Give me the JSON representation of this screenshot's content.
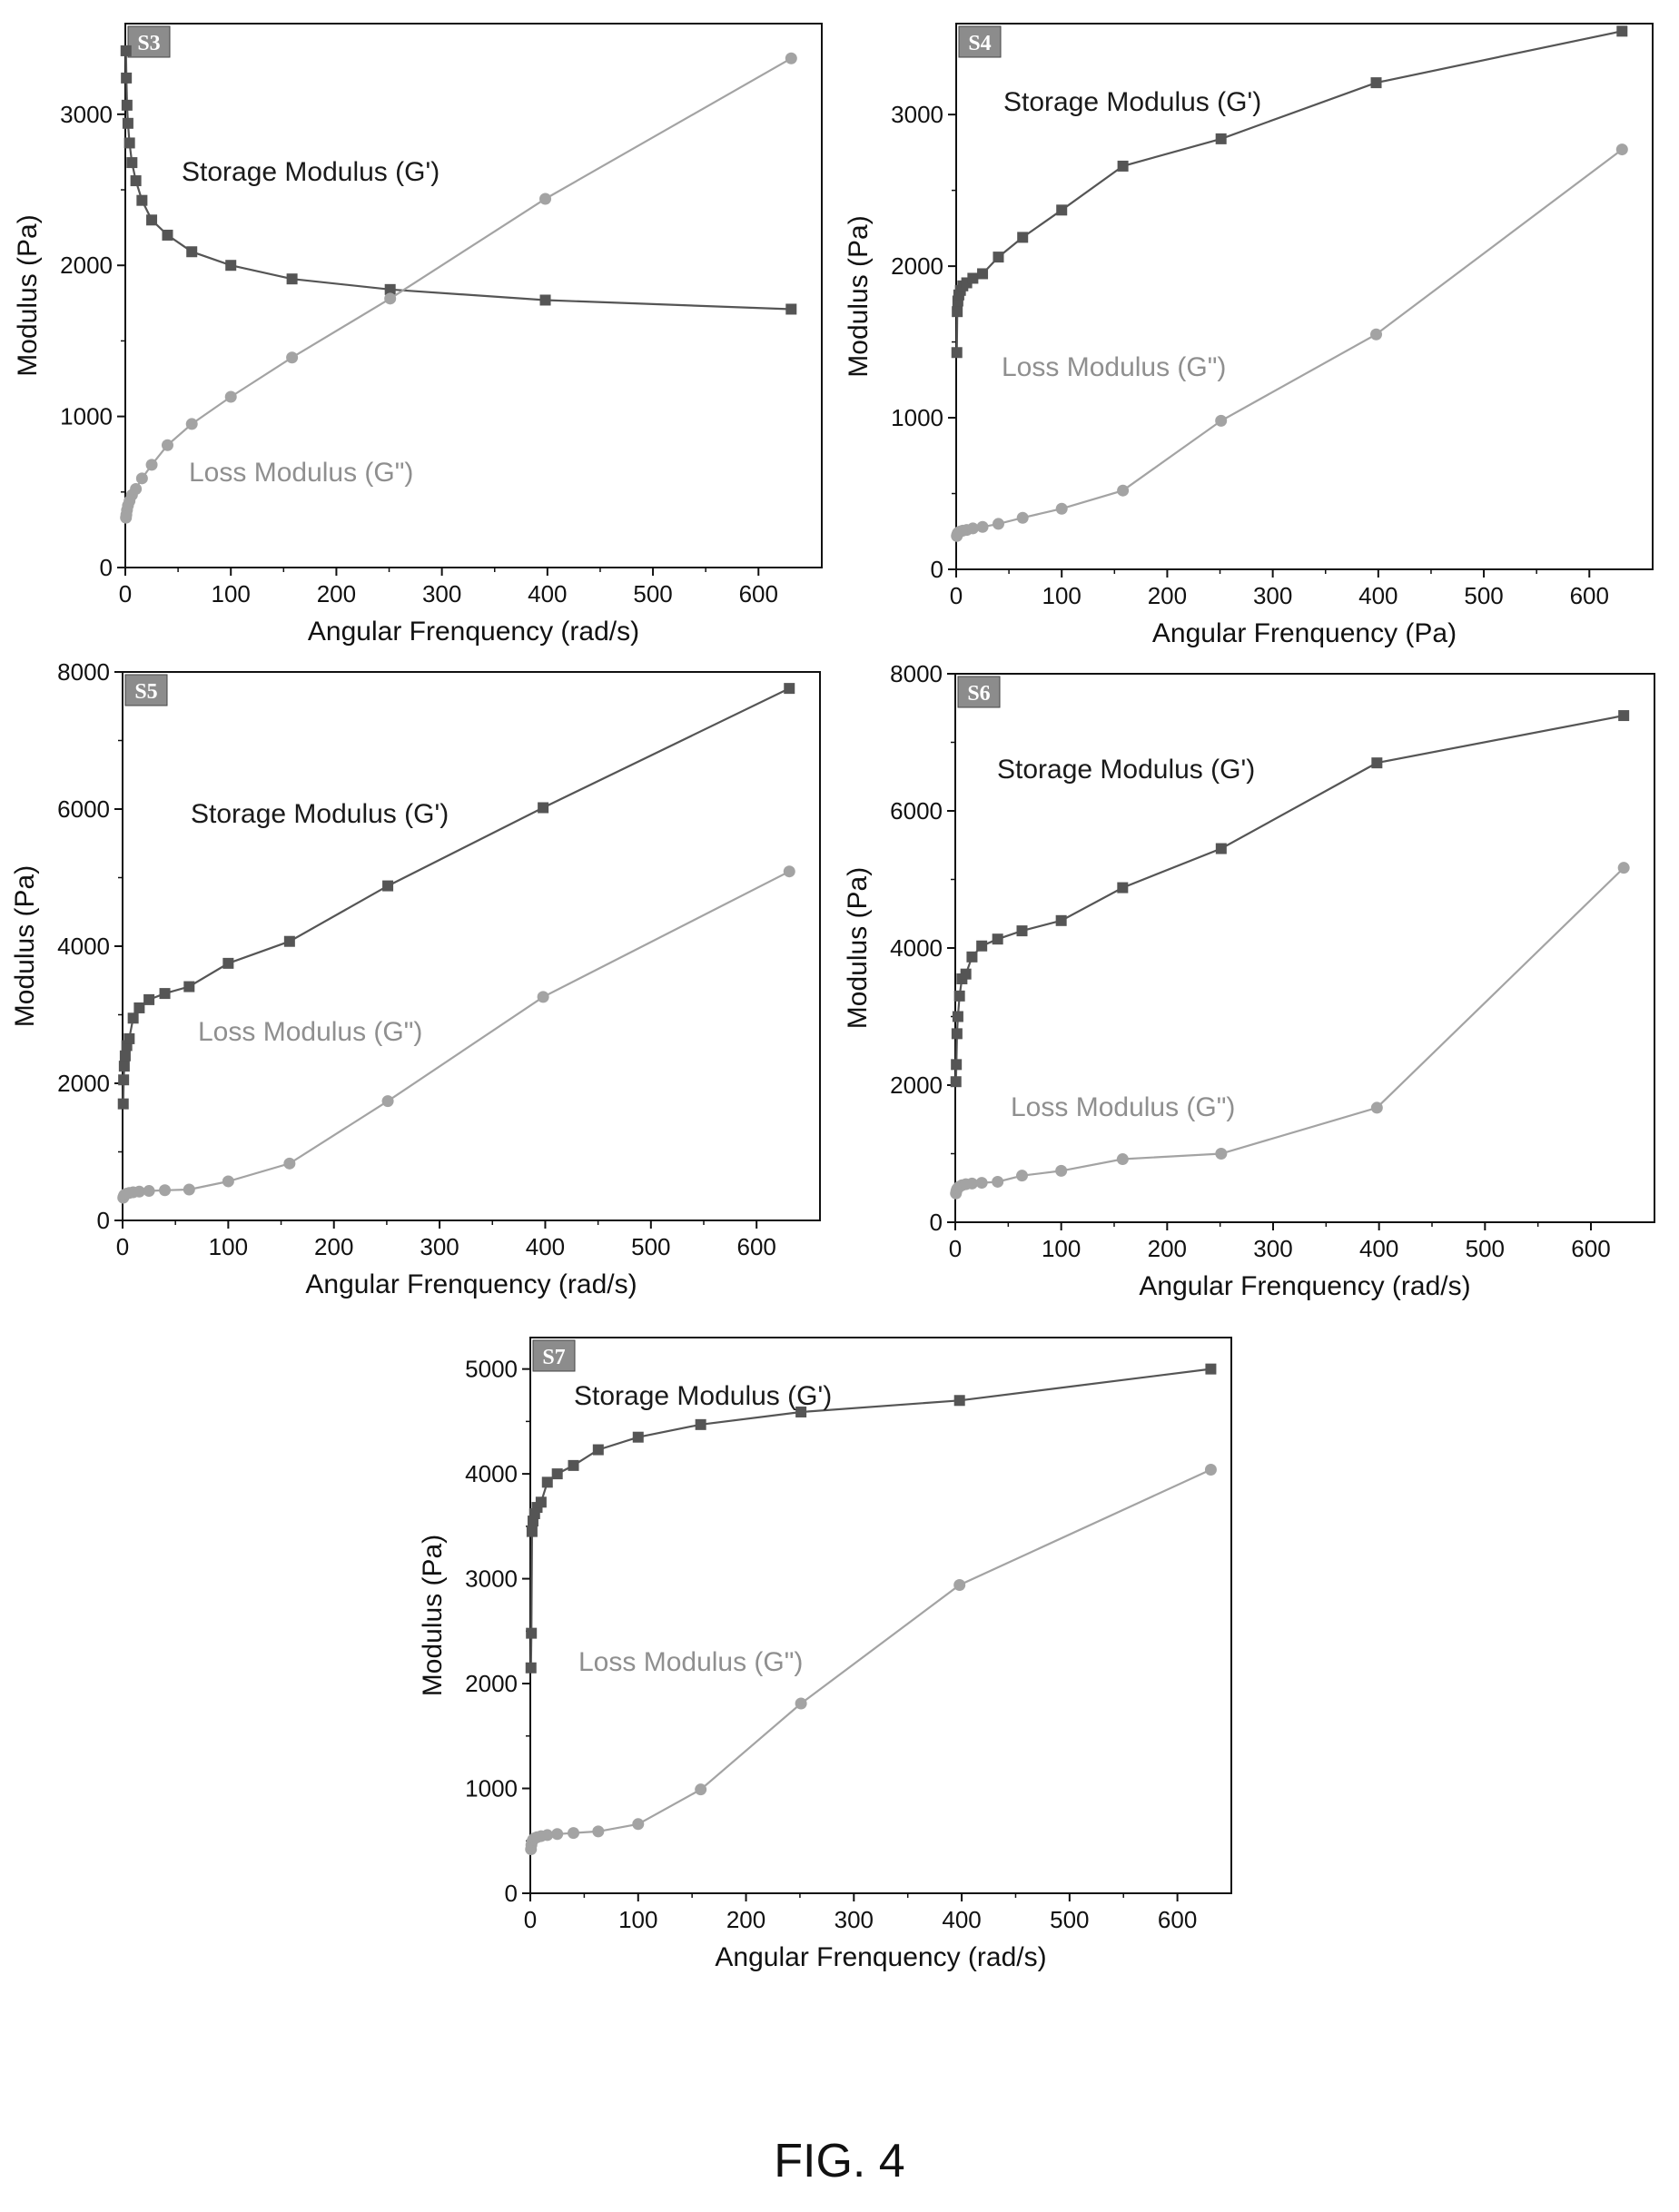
{
  "figure_caption": "FIG. 4",
  "colors": {
    "storage": "#555555",
    "loss": "#a3a3a3",
    "axis": "#111111",
    "tag_fill": "#8c8c8c"
  },
  "chart_data": [
    {
      "type": "line",
      "panel_label": "S3",
      "xlabel": "Angular Frenquency (rad/s)",
      "ylabel": "Modulus (Pa)",
      "xlim": [
        0,
        660
      ],
      "ylim": [
        0,
        3600
      ],
      "xticks": [
        0,
        100,
        200,
        300,
        400,
        500,
        600
      ],
      "yticks": [
        0,
        1000,
        2000,
        3000
      ],
      "grid": false,
      "legend": "none (series labels placed inline)",
      "series": [
        {
          "name": "Storage Modulus (G')",
          "marker": "square",
          "points": [
            [
              0.63,
              3420
            ],
            [
              1,
              3240
            ],
            [
              1.6,
              3060
            ],
            [
              2.5,
              2940
            ],
            [
              4,
              2810
            ],
            [
              6.3,
              2680
            ],
            [
              10,
              2560
            ],
            [
              15.8,
              2430
            ],
            [
              25,
              2300
            ],
            [
              40,
              2200
            ],
            [
              63,
              2090
            ],
            [
              100,
              2000
            ],
            [
              158,
              1910
            ],
            [
              251,
              1840
            ],
            [
              398,
              1770
            ],
            [
              631,
              1710
            ]
          ]
        },
        {
          "name": "Loss Modulus (G\")",
          "marker": "circle",
          "points": [
            [
              0.63,
              330
            ],
            [
              1,
              350
            ],
            [
              1.6,
              380
            ],
            [
              2.5,
              410
            ],
            [
              4,
              440
            ],
            [
              6.3,
              480
            ],
            [
              10,
              520
            ],
            [
              15.8,
              590
            ],
            [
              25,
              680
            ],
            [
              40,
              810
            ],
            [
              63,
              950
            ],
            [
              100,
              1130
            ],
            [
              158,
              1390
            ],
            [
              251,
              1780
            ],
            [
              398,
              2440
            ],
            [
              631,
              3370
            ]
          ]
        }
      ]
    },
    {
      "type": "line",
      "panel_label": "S4",
      "xlabel": "Angular Frenquency (Pa)",
      "ylabel": "Modulus (Pa)",
      "xlim": [
        0,
        660
      ],
      "ylim": [
        0,
        3600
      ],
      "xticks": [
        0,
        100,
        200,
        300,
        400,
        500,
        600
      ],
      "yticks": [
        0,
        1000,
        2000,
        3000
      ],
      "grid": false,
      "legend": "none (series labels placed inline)",
      "series": [
        {
          "name": "Storage Modulus (G')",
          "marker": "square",
          "points": [
            [
              0.63,
              1430
            ],
            [
              1,
              1700
            ],
            [
              1.6,
              1770
            ],
            [
              2.5,
              1810
            ],
            [
              4,
              1840
            ],
            [
              6.3,
              1870
            ],
            [
              10,
              1890
            ],
            [
              15.8,
              1920
            ],
            [
              25,
              1950
            ],
            [
              40,
              2060
            ],
            [
              63,
              2190
            ],
            [
              100,
              2370
            ],
            [
              158,
              2660
            ],
            [
              251,
              2840
            ],
            [
              398,
              3210
            ],
            [
              631,
              3550
            ]
          ]
        },
        {
          "name": "Loss Modulus (G\")",
          "marker": "circle",
          "points": [
            [
              0.63,
              220
            ],
            [
              1,
              230
            ],
            [
              1.6,
              240
            ],
            [
              2.5,
              245
            ],
            [
              4,
              250
            ],
            [
              6.3,
              255
            ],
            [
              10,
              260
            ],
            [
              15.8,
              270
            ],
            [
              25,
              280
            ],
            [
              40,
              300
            ],
            [
              63,
              340
            ],
            [
              100,
              400
            ],
            [
              158,
              520
            ],
            [
              251,
              980
            ],
            [
              398,
              1550
            ],
            [
              631,
              2770
            ]
          ]
        }
      ]
    },
    {
      "type": "line",
      "panel_label": "S5",
      "xlabel": "Angular Frenquency (rad/s)",
      "ylabel": "Modulus (Pa)",
      "xlim": [
        0,
        660
      ],
      "ylim": [
        0,
        8000
      ],
      "xticks": [
        0,
        100,
        200,
        300,
        400,
        500,
        600
      ],
      "yticks": [
        0,
        2000,
        4000,
        6000,
        8000
      ],
      "grid": false,
      "legend": "none (series labels placed inline)",
      "series": [
        {
          "name": "Storage Modulus (G')",
          "marker": "square",
          "points": [
            [
              0.63,
              1700
            ],
            [
              1,
              2050
            ],
            [
              1.6,
              2250
            ],
            [
              2.5,
              2400
            ],
            [
              4,
              2550
            ],
            [
              6.3,
              2650
            ],
            [
              10,
              2950
            ],
            [
              15.8,
              3100
            ],
            [
              25,
              3220
            ],
            [
              40,
              3310
            ],
            [
              63,
              3410
            ],
            [
              100,
              3750
            ],
            [
              158,
              4070
            ],
            [
              251,
              4880
            ],
            [
              398,
              6020
            ],
            [
              631,
              7760
            ]
          ]
        },
        {
          "name": "Loss Modulus (G\")",
          "marker": "circle",
          "points": [
            [
              0.63,
              330
            ],
            [
              1,
              350
            ],
            [
              1.6,
              370
            ],
            [
              2.5,
              380
            ],
            [
              4,
              390
            ],
            [
              6.3,
              400
            ],
            [
              10,
              410
            ],
            [
              15.8,
              420
            ],
            [
              25,
              430
            ],
            [
              40,
              440
            ],
            [
              63,
              450
            ],
            [
              100,
              570
            ],
            [
              158,
              830
            ],
            [
              251,
              1740
            ],
            [
              398,
              3260
            ],
            [
              631,
              5090
            ]
          ]
        }
      ]
    },
    {
      "type": "line",
      "panel_label": "S6",
      "xlabel": "Angular Frenquency (rad/s)",
      "ylabel": "Modulus (Pa)",
      "xlim": [
        0,
        660
      ],
      "ylim": [
        0,
        8000
      ],
      "xticks": [
        0,
        100,
        200,
        300,
        400,
        500,
        600
      ],
      "yticks": [
        0,
        2000,
        4000,
        6000,
        8000
      ],
      "grid": false,
      "legend": "none (series labels placed inline)",
      "series": [
        {
          "name": "Storage Modulus (G')",
          "marker": "square",
          "points": [
            [
              0.63,
              2050
            ],
            [
              1,
              2300
            ],
            [
              1.6,
              2750
            ],
            [
              2.5,
              3000
            ],
            [
              4,
              3300
            ],
            [
              6.3,
              3550
            ],
            [
              10,
              3620
            ],
            [
              15.8,
              3870
            ],
            [
              25,
              4030
            ],
            [
              40,
              4130
            ],
            [
              63,
              4250
            ],
            [
              100,
              4400
            ],
            [
              158,
              4880
            ],
            [
              251,
              5450
            ],
            [
              398,
              6700
            ],
            [
              631,
              7390
            ]
          ]
        },
        {
          "name": "Loss Modulus (G\")",
          "marker": "circle",
          "points": [
            [
              0.63,
              420
            ],
            [
              1,
              450
            ],
            [
              1.6,
              480
            ],
            [
              2.5,
              500
            ],
            [
              4,
              520
            ],
            [
              6.3,
              540
            ],
            [
              10,
              555
            ],
            [
              15.8,
              565
            ],
            [
              25,
              575
            ],
            [
              40,
              590
            ],
            [
              63,
              680
            ],
            [
              100,
              750
            ],
            [
              158,
              920
            ],
            [
              251,
              1000
            ],
            [
              398,
              1670
            ],
            [
              631,
              5170
            ]
          ]
        }
      ]
    },
    {
      "type": "line",
      "panel_label": "S7",
      "xlabel": "Angular Frenquency (rad/s)",
      "ylabel": "Modulus (Pa)",
      "xlim": [
        0,
        650
      ],
      "ylim": [
        0,
        5300
      ],
      "xticks": [
        0,
        100,
        200,
        300,
        400,
        500,
        600
      ],
      "yticks": [
        0,
        1000,
        2000,
        3000,
        4000,
        5000
      ],
      "grid": false,
      "legend": "none (series labels placed inline)",
      "series": [
        {
          "name": "Storage Modulus (G')",
          "marker": "square",
          "points": [
            [
              0.63,
              2150
            ],
            [
              1,
              2480
            ],
            [
              1.6,
              3450
            ],
            [
              2.5,
              3550
            ],
            [
              4,
              3620
            ],
            [
              6.3,
              3680
            ],
            [
              10,
              3730
            ],
            [
              15.8,
              3920
            ],
            [
              25,
              4000
            ],
            [
              40,
              4080
            ],
            [
              63,
              4230
            ],
            [
              100,
              4350
            ],
            [
              158,
              4470
            ],
            [
              251,
              4590
            ],
            [
              398,
              4700
            ],
            [
              631,
              5000
            ]
          ]
        },
        {
          "name": "Loss Modulus (G\")",
          "marker": "circle",
          "points": [
            [
              0.63,
              420
            ],
            [
              1,
              460
            ],
            [
              1.6,
              490
            ],
            [
              2.5,
              510
            ],
            [
              4,
              525
            ],
            [
              6.3,
              535
            ],
            [
              10,
              545
            ],
            [
              15.8,
              555
            ],
            [
              25,
              565
            ],
            [
              40,
              575
            ],
            [
              63,
              590
            ],
            [
              100,
              660
            ],
            [
              158,
              990
            ],
            [
              251,
              1810
            ],
            [
              398,
              2940
            ],
            [
              631,
              4040
            ]
          ]
        }
      ]
    }
  ]
}
